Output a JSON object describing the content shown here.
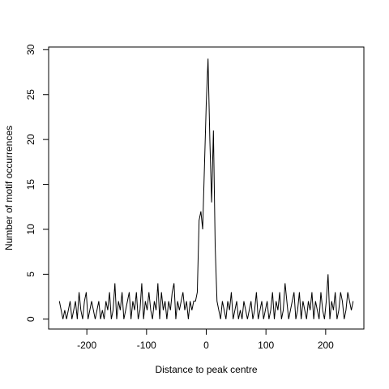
{
  "chart_data": {
    "type": "line",
    "xlabel": "Distance to peak centre",
    "ylabel": "Number of motif occurrences",
    "xlim": [
      -264,
      264
    ],
    "ylim": [
      -1.1,
      30.3
    ],
    "xticks": [
      -200,
      -100,
      0,
      100,
      200
    ],
    "yticks": [
      0,
      5,
      10,
      15,
      20,
      25,
      30
    ],
    "x": [
      -246,
      -243,
      -240,
      -237,
      -234,
      -231,
      -228,
      -225,
      -222,
      -219,
      -216,
      -213,
      -210,
      -207,
      -204,
      -201,
      -198,
      -195,
      -192,
      -189,
      -186,
      -183,
      -180,
      -177,
      -174,
      -171,
      -168,
      -165,
      -162,
      -159,
      -156,
      -153,
      -150,
      -147,
      -144,
      -141,
      -138,
      -135,
      -132,
      -129,
      -126,
      -123,
      -120,
      -117,
      -114,
      -111,
      -108,
      -105,
      -102,
      -99,
      -96,
      -93,
      -90,
      -87,
      -84,
      -81,
      -78,
      -75,
      -72,
      -69,
      -66,
      -63,
      -60,
      -57,
      -54,
      -51,
      -48,
      -45,
      -42,
      -39,
      -36,
      -33,
      -30,
      -27,
      -24,
      -21,
      -18,
      -15,
      -12,
      -9,
      -6,
      -3,
      0,
      3,
      6,
      9,
      12,
      15,
      18,
      21,
      24,
      27,
      30,
      33,
      36,
      39,
      42,
      45,
      48,
      51,
      54,
      57,
      60,
      63,
      66,
      69,
      72,
      75,
      78,
      81,
      84,
      87,
      90,
      93,
      96,
      99,
      102,
      105,
      108,
      111,
      114,
      117,
      120,
      123,
      126,
      129,
      132,
      135,
      138,
      141,
      144,
      147,
      150,
      153,
      156,
      159,
      162,
      165,
      168,
      171,
      174,
      177,
      180,
      183,
      186,
      189,
      192,
      195,
      198,
      201,
      204,
      207,
      210,
      213,
      216,
      219,
      222,
      225,
      228,
      231,
      234,
      237,
      240,
      243,
      246
    ],
    "series": [
      {
        "color": "#000000",
        "values": [
          2,
          1,
          0,
          1,
          0,
          1,
          2,
          0,
          1,
          2,
          0,
          3,
          1,
          0,
          2,
          3,
          0,
          1,
          2,
          1,
          0,
          1,
          2,
          0,
          1,
          0,
          2,
          1,
          3,
          0,
          1,
          4,
          0,
          2,
          1,
          3,
          0,
          1,
          2,
          3,
          0,
          2,
          1,
          3,
          0,
          1,
          4,
          0,
          2,
          1,
          3,
          1,
          0,
          2,
          1,
          4,
          0,
          3,
          1,
          2,
          0,
          2,
          1,
          3,
          4,
          0,
          2,
          1,
          2,
          3,
          1,
          2,
          0,
          2,
          1,
          2,
          2,
          3,
          11,
          12,
          10,
          17,
          24,
          29,
          20,
          13,
          21,
          8,
          2,
          1,
          0,
          2,
          1,
          0,
          2,
          1,
          3,
          0,
          1,
          2,
          0,
          1,
          0,
          2,
          1,
          0,
          1,
          2,
          0,
          1,
          3,
          0,
          1,
          2,
          0,
          1,
          2,
          0,
          1,
          3,
          0,
          2,
          1,
          3,
          0,
          1,
          4,
          2,
          0,
          1,
          2,
          3,
          0,
          1,
          3,
          0,
          2,
          1,
          0,
          2,
          1,
          3,
          0,
          2,
          1,
          0,
          3,
          1,
          0,
          2,
          5,
          0,
          2,
          1,
          3,
          0,
          1,
          3,
          2,
          0,
          1,
          3,
          2,
          1,
          2
        ]
      }
    ]
  }
}
